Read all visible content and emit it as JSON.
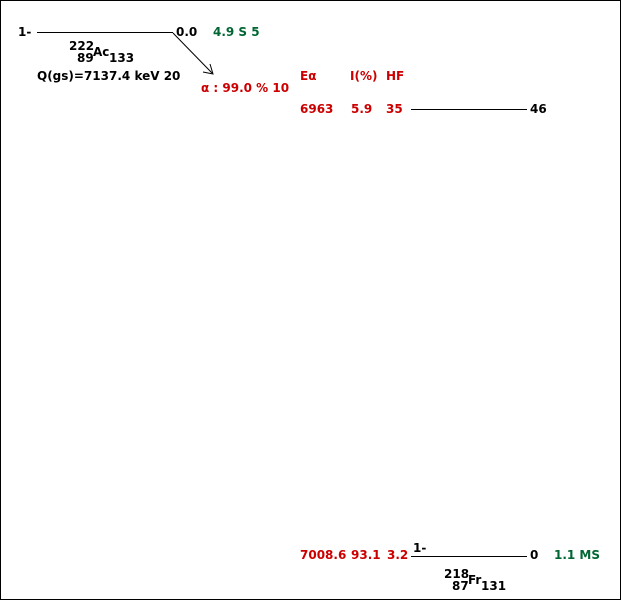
{
  "parent": {
    "spin": "1-",
    "energy": "0.0",
    "half_life": "4.9 S 5",
    "mass_number": "222",
    "atomic_number": "89",
    "symbol": "Ac",
    "neutron_number": "133",
    "q_value": "Q(gs)=7137.4 keV 20"
  },
  "decay": {
    "mode_label": "α : 99.0 % 10"
  },
  "table_headers": {
    "energy": "Eα",
    "intensity": "I(%)",
    "hf": "HF"
  },
  "transitions": [
    {
      "energy": "6963",
      "intensity": "5.9",
      "hf": "35",
      "level": "46"
    }
  ],
  "daughter_transition": {
    "energy": "7008.6",
    "intensity": "93.1",
    "hf": "3.2"
  },
  "daughter": {
    "spin": "1-",
    "energy": "0",
    "half_life": "1.1 MS",
    "mass_number": "218",
    "atomic_number": "87",
    "symbol": "Fr",
    "neutron_number": "131"
  },
  "colors": {
    "level_text": "#000000",
    "alpha_data": "#cc0000",
    "half_life": "#006633"
  }
}
